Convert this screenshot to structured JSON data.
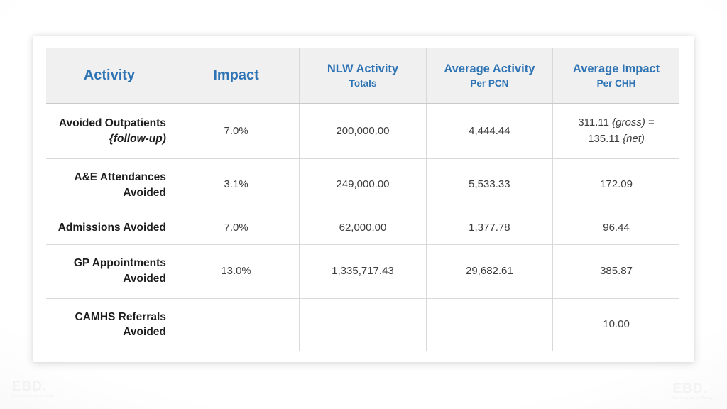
{
  "colors": {
    "accent_blue": "#2e74b5",
    "header_bg": "#f1f0f0",
    "row_border": "#d9d9d9"
  },
  "watermark": {
    "logo": "EBD.",
    "tagline": "Economics by Design"
  },
  "table": {
    "headers": [
      {
        "title": "Activity",
        "subtitle": ""
      },
      {
        "title": "Impact",
        "subtitle": ""
      },
      {
        "title": "NLW Activity",
        "subtitle": "Totals"
      },
      {
        "title": "Average Activity",
        "subtitle": "Per PCN"
      },
      {
        "title": "Average Impact",
        "subtitle": "Per CHH"
      }
    ],
    "rows": [
      {
        "activity": [
          "Avoided Outpatients",
          "{follow-up)"
        ],
        "impact": "7.0%",
        "nlw_activity_totals": "200,000.00",
        "avg_activity_per_pcn": "4,444.44",
        "chh_rich": {
          "t1": "311.11 ",
          "i1": "{gross)",
          "t2": " =",
          "t3": "135.11 ",
          "i2": "{net)"
        }
      },
      {
        "activity": [
          "A&E Attendances",
          "Avoided"
        ],
        "impact": "3.1%",
        "nlw_activity_totals": "249,000.00",
        "avg_activity_per_pcn": "5,533.33",
        "avg_impact_per_chh": "172.09"
      },
      {
        "activity": [
          "Admissions Avoided"
        ],
        "impact": "7.0%",
        "nlw_activity_totals": "62,000.00",
        "avg_activity_per_pcn": "1,377.78",
        "avg_impact_per_chh": "96.44"
      },
      {
        "activity": [
          "GP Appointments",
          "Avoided"
        ],
        "impact": "13.0%",
        "nlw_activity_totals": "1,335,717.43",
        "avg_activity_per_pcn": "29,682.61",
        "avg_impact_per_chh": "385.87"
      },
      {
        "activity": [
          "CAMHS Referrals",
          "Avoided"
        ],
        "impact": "",
        "nlw_activity_totals": "",
        "avg_activity_per_pcn": "",
        "avg_impact_per_chh": "10.00"
      }
    ]
  },
  "chart_data": {
    "type": "table",
    "columns": [
      "Activity",
      "Impact",
      "NLW Activity Totals",
      "Average Activity Per PCN",
      "Average Impact Per CHH"
    ],
    "rows": [
      [
        "Avoided Outpatients {follow-up)",
        "7.0%",
        "200,000.00",
        "4,444.44",
        "311.11 {gross) = 135.11 {net)"
      ],
      [
        "A&E Attendances Avoided",
        "3.1%",
        "249,000.00",
        "5,533.33",
        "172.09"
      ],
      [
        "Admissions Avoided",
        "7.0%",
        "62,000.00",
        "1,377.78",
        "96.44"
      ],
      [
        "GP Appointments Avoided",
        "13.0%",
        "1,335,717.43",
        "29,682.61",
        "385.87"
      ],
      [
        "CAMHS Referrals Avoided",
        "",
        "",
        "",
        "10.00"
      ]
    ]
  }
}
